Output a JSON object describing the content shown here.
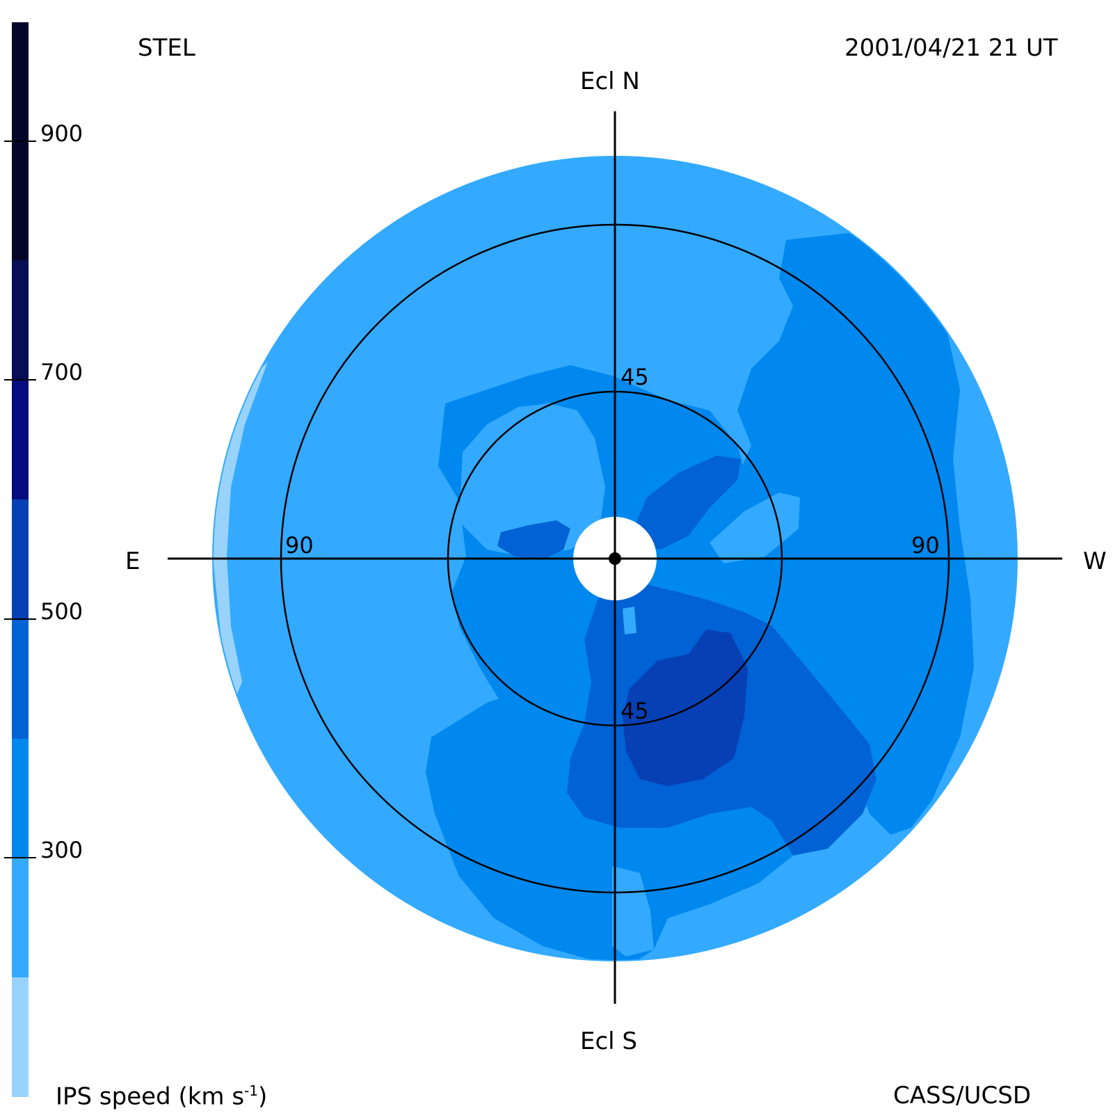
{
  "header": {
    "observatory": "STEL",
    "timestamp": "2001/04/21 21 UT"
  },
  "footer": {
    "credit": "CASS/UCSD",
    "colorbar_label_main": "IPS speed (km s",
    "colorbar_label_sup": "-1",
    "colorbar_label_end": ")"
  },
  "colorbar": {
    "ticks": [
      "900",
      "700",
      "500",
      "300"
    ],
    "colors": [
      "#99d3fc",
      "#33aaff",
      "#0088ee",
      "#0062d4",
      "#0740b4",
      "#070d7e",
      "#080e55",
      "#05062a"
    ],
    "bins": [
      "<200",
      "200-300",
      "300-400",
      "400-500",
      "500-600",
      "600-700",
      "700-800",
      ">800"
    ]
  },
  "map": {
    "directions": {
      "north": "Ecl N",
      "south": "Ecl S",
      "east": "E",
      "west": "W"
    },
    "ring_labels": {
      "inner_top": "45",
      "inner_bottom": "45",
      "outer_left": "90",
      "outer_right": "90"
    }
  }
}
